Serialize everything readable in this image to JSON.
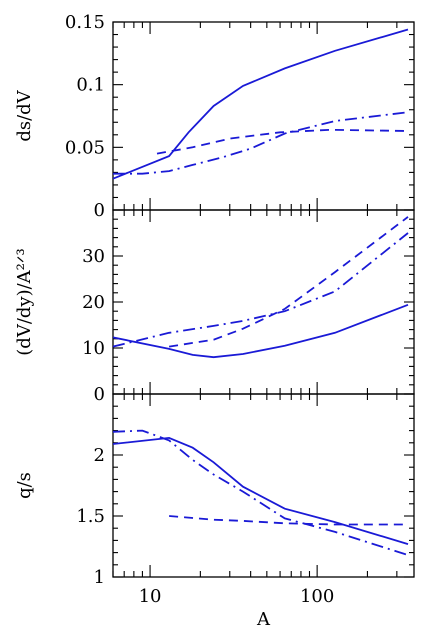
{
  "chart_data": {
    "type": "line",
    "xlabel": "A",
    "xscale": "log",
    "xlim": [
      6,
      380
    ],
    "xticks": [
      10,
      100
    ],
    "xtick_labels": [
      "10",
      "100"
    ],
    "line_color": "#1a1ad6",
    "panels": [
      {
        "ylabel": "ds/dV",
        "ylim": [
          0,
          0.15
        ],
        "yticks": [
          0,
          0.05,
          0.1,
          0.15
        ],
        "ytick_labels": [
          "0",
          "0.05",
          "0.1",
          "0.15"
        ],
        "series": [
          {
            "style": "solid",
            "x": [
              6,
              13,
              17,
              24,
              36,
              64,
              128,
              350
            ],
            "y": [
              0.025,
              0.043,
              0.062,
              0.083,
              0.099,
              0.113,
              0.127,
              0.144
            ]
          },
          {
            "style": "dashed",
            "x": [
              11,
              18,
              30,
              60,
              120,
              350
            ],
            "y": [
              0.045,
              0.05,
              0.057,
              0.062,
              0.064,
              0.063
            ]
          },
          {
            "style": "dashdot",
            "x": [
              6,
              9,
              13,
              18,
              27,
              40,
              64,
              128,
              350
            ],
            "y": [
              0.029,
              0.029,
              0.031,
              0.036,
              0.042,
              0.049,
              0.061,
              0.071,
              0.078
            ]
          }
        ]
      },
      {
        "ylabel": "(dV/dy)/A²ᐟ³",
        "ylim": [
          0,
          40
        ],
        "yticks": [
          0,
          10,
          20,
          30
        ],
        "ytick_labels": [
          "0",
          "10",
          "20",
          "30"
        ],
        "series": [
          {
            "style": "solid",
            "x": [
              6,
              13,
              18,
              24,
              36,
              64,
              128,
              350
            ],
            "y": [
              12.3,
              9.8,
              8.5,
              8.0,
              8.7,
              10.5,
              13.3,
              19.4
            ]
          },
          {
            "style": "dashed",
            "x": [
              13,
              24,
              36,
              64,
              128,
              350
            ],
            "y": [
              10.3,
              11.8,
              14.2,
              18.5,
              26.5,
              38.5
            ]
          },
          {
            "style": "dashdot",
            "x": [
              6,
              13,
              24,
              36,
              64,
              128,
              350
            ],
            "y": [
              10.3,
              13.3,
              14.8,
              15.9,
              18.0,
              22.3,
              35.0
            ]
          }
        ]
      },
      {
        "ylabel": "q/s",
        "ylim": [
          1,
          2.5
        ],
        "yticks": [
          1,
          1.5,
          2
        ],
        "ytick_labels": [
          "1",
          "1.5",
          "2"
        ],
        "series": [
          {
            "style": "solid",
            "x": [
              6,
              13,
              18,
              24,
              36,
              64,
              128,
              350
            ],
            "y": [
              2.09,
              2.14,
              2.06,
              1.94,
              1.74,
              1.56,
              1.45,
              1.27
            ]
          },
          {
            "style": "dashed",
            "x": [
              13,
              24,
              36,
              64,
              128,
              350
            ],
            "y": [
              1.5,
              1.47,
              1.46,
              1.44,
              1.43,
              1.43
            ]
          },
          {
            "style": "dashdot",
            "x": [
              6,
              9,
              13,
              18,
              24,
              36,
              64,
              128,
              350
            ],
            "y": [
              2.19,
              2.2,
              2.12,
              1.96,
              1.84,
              1.7,
              1.48,
              1.37,
              1.18
            ]
          }
        ]
      }
    ]
  }
}
